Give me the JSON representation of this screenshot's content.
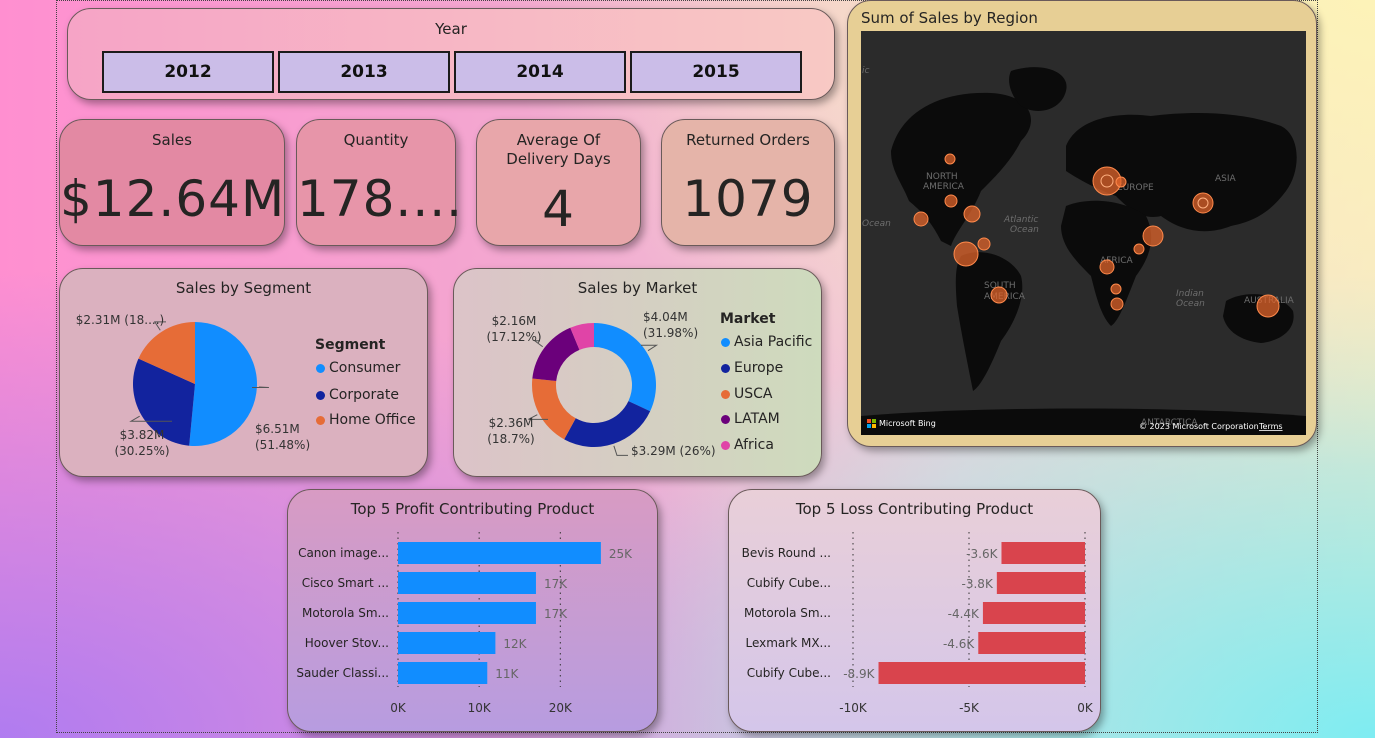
{
  "colors": {
    "blue": "#118dff",
    "navy": "#12239e",
    "orange": "#e66c37",
    "purple": "#6b007b",
    "pink": "#e044a7",
    "loss": "#d9444d",
    "map_bg": "#2b2b2b",
    "land": "#0b0b0b",
    "bubble": "#e0642b"
  },
  "slicer": {
    "title": "Year",
    "years": [
      "2012",
      "2013",
      "2014",
      "2015"
    ]
  },
  "kpis": {
    "sales": {
      "label": "Sales",
      "value": "$12.64M"
    },
    "quantity": {
      "label": "Quantity",
      "value": "178...."
    },
    "delivery": {
      "label_line1": "Average Of",
      "label_line2": "Delivery Days",
      "value": "4"
    },
    "returned": {
      "label": "Returned Orders",
      "value": "1079"
    }
  },
  "map": {
    "title": "Sum of Sales by Region",
    "labels": [
      "NORTH",
      "AMERICA",
      "EUROPE",
      "ASIA",
      "AFRICA",
      "SOUTH",
      "AMERICA",
      "AUSTRALIA",
      "Atlantic",
      "Ocean",
      "Indian",
      "Ocean",
      "Ocean",
      "ic",
      "ANTARCTICA"
    ],
    "brand": "Microsoft Bing",
    "copyright": "© 2023 Microsoft Corporation",
    "terms": "Terms"
  },
  "chart_data": [
    {
      "type": "pie",
      "title": "Sales by Segment",
      "legend_title": "Segment",
      "categories": [
        "Consumer",
        "Corporate",
        "Home Office"
      ],
      "values": [
        6.51,
        3.82,
        2.31
      ],
      "percent": [
        51.48,
        30.25,
        18.27
      ],
      "data_labels": [
        [
          "$6.51M",
          "(51.48%)"
        ],
        [
          "$3.82M",
          "(30.25%)"
        ],
        [
          "$2.31M (18....)"
        ]
      ]
    },
    {
      "type": "pie",
      "subtype": "donut",
      "title": "Sales by Market",
      "legend_title": "Market",
      "categories": [
        "Asia Pacific",
        "Europe",
        "USCA",
        "LATAM",
        "Africa"
      ],
      "values": [
        4.04,
        3.29,
        2.36,
        2.16,
        0.79
      ],
      "percent": [
        31.98,
        26,
        18.7,
        17.12,
        6.2
      ],
      "data_labels": [
        [
          "$4.04M",
          "(31.98%)"
        ],
        [
          "$3.29M (26%)"
        ],
        [
          "$2.36M",
          "(18.7%)"
        ],
        [
          "$2.16M",
          "(17.12%)"
        ],
        []
      ]
    },
    {
      "type": "bar",
      "orientation": "horizontal",
      "title": "Top 5 Profit Contributing Product",
      "categories": [
        "Canon image...",
        "Cisco Smart ...",
        "Motorola Sm...",
        "Hoover Stov...",
        "Sauder Classi..."
      ],
      "values": [
        25000,
        17000,
        17000,
        12000,
        11000
      ],
      "data_labels": [
        "25K",
        "17K",
        "17K",
        "12K",
        "11K"
      ],
      "xlim": [
        0,
        26000
      ],
      "ticks": [
        "0K",
        "10K",
        "20K"
      ],
      "tick_values": [
        0,
        10000,
        20000
      ]
    },
    {
      "type": "bar",
      "orientation": "horizontal",
      "title": "Top 5 Loss Contributing Product",
      "categories": [
        "Bevis Round ...",
        "Cubify Cube...",
        "Motorola Sm...",
        "Lexmark MX...",
        "Cubify Cube..."
      ],
      "values": [
        -3600,
        -3800,
        -4400,
        -4600,
        -8900
      ],
      "data_labels": [
        "-3.6K",
        "-3.8K",
        "-4.4K",
        "-4.6K",
        "-8.9K"
      ],
      "xlim": [
        -10000,
        0
      ],
      "ticks": [
        "-10K",
        "-5K",
        "0K"
      ],
      "tick_values": [
        -10000,
        -5000,
        0
      ]
    }
  ]
}
